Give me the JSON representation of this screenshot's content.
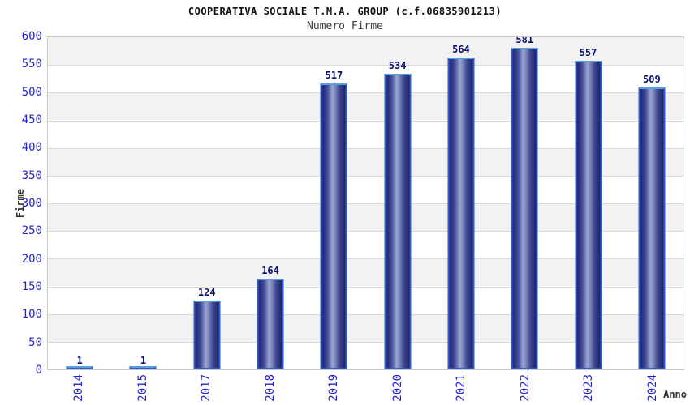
{
  "chart_data": {
    "type": "bar",
    "title": "COOPERATIVA SOCIALE T.M.A. GROUP (c.f.06835901213)",
    "subtitle": "Numero Firme",
    "xlabel": "Anno",
    "ylabel": "Firme",
    "categories": [
      "2014",
      "2015",
      "2017",
      "2018",
      "2019",
      "2020",
      "2021",
      "2022",
      "2023",
      "2024"
    ],
    "values": [
      1,
      1,
      124,
      164,
      517,
      534,
      564,
      581,
      557,
      509
    ],
    "ylim": [
      0,
      600
    ],
    "ytick_step": 50,
    "ytick_labels": [
      "0",
      "50",
      "100",
      "150",
      "200",
      "250",
      "300",
      "350",
      "400",
      "450",
      "500",
      "550",
      "600"
    ],
    "grid": "horizontal",
    "legend": "none",
    "bar_labels_shown": true,
    "colors": {
      "bar_dark": "#20256e",
      "bar_light": "#9aa5d0",
      "bar_border": "#2f5ccc",
      "bar_border_top": "#55a0e0",
      "axis_tick_label": "#2424cc",
      "value_label": "#0a1070",
      "band_gray": "#f2f2f2",
      "gridline": "#d9d9d9",
      "plot_border": "#c8c8c8",
      "text_dark": "#333333",
      "background": "#ffffff"
    }
  }
}
